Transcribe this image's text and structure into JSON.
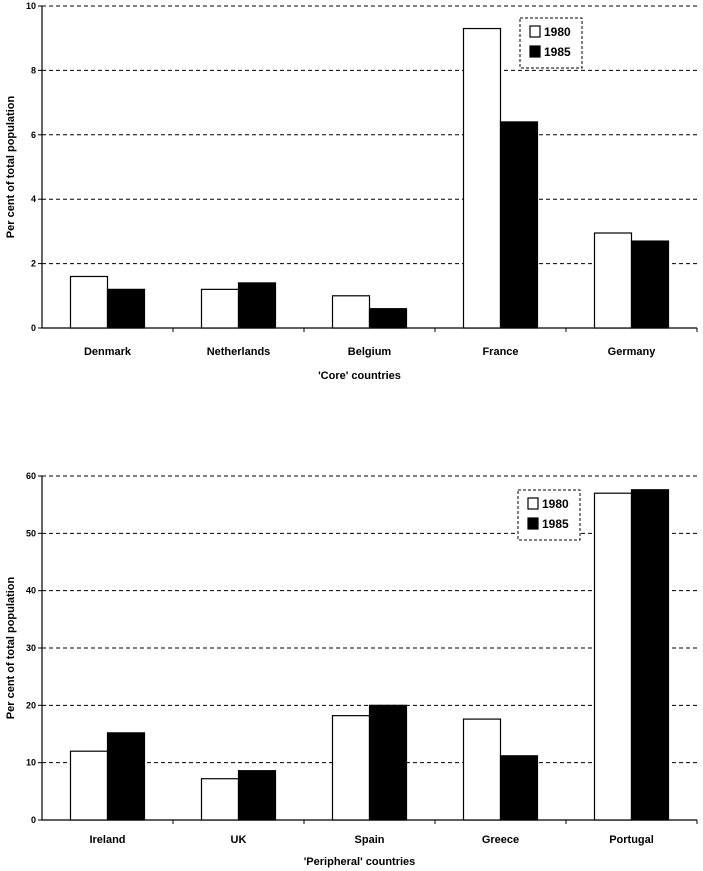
{
  "chart_data": [
    {
      "type": "bar",
      "title": "",
      "categories": [
        "Denmark",
        "Netherlands",
        "Belgium",
        "France",
        "Germany"
      ],
      "series": [
        {
          "name": "1980",
          "values": [
            1.6,
            1.2,
            1.0,
            9.3,
            2.95
          ]
        },
        {
          "name": "1985",
          "values": [
            1.2,
            1.4,
            0.6,
            6.4,
            2.7
          ]
        }
      ],
      "xlabel": "'Core' countries",
      "ylabel": "Per cent of total population",
      "ylim": [
        0,
        10
      ],
      "yticks": [
        0,
        2,
        4,
        6,
        8,
        10
      ],
      "grid": true,
      "legend_position": "top-right"
    },
    {
      "type": "bar",
      "title": "",
      "categories": [
        "Ireland",
        "UK",
        "Spain",
        "Greece",
        "Portugal"
      ],
      "series": [
        {
          "name": "1980",
          "values": [
            12,
            7.2,
            18.2,
            17.6,
            57
          ]
        },
        {
          "name": "1985",
          "values": [
            15.2,
            8.6,
            20,
            11.2,
            57.6
          ]
        }
      ],
      "xlabel": "'Peripheral' countries",
      "ylabel": "Per cent of total population",
      "ylim": [
        0,
        60
      ],
      "yticks": [
        0,
        10,
        20,
        30,
        40,
        50,
        60
      ],
      "grid": true,
      "legend_position": "top-right"
    }
  ],
  "colors": {
    "series_1980": "#ffffff",
    "series_1985": "#000000",
    "axis": "#000000"
  }
}
